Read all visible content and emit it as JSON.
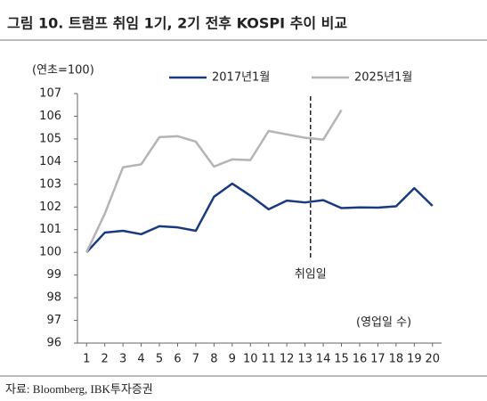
{
  "chart_data": {
    "type": "line",
    "title": "그림 10. 트럼프 취임 1기, 2기 전후 KOSPI 추이 비교",
    "y_label": "(연초=100)",
    "x_label": "(영업일 수)",
    "source": "자료: Bloomberg, IBK투자증권",
    "x": [
      1,
      2,
      3,
      4,
      5,
      6,
      7,
      8,
      9,
      10,
      11,
      12,
      13,
      14,
      15,
      16,
      17,
      18,
      19,
      20
    ],
    "series": [
      {
        "name": "2017년1월",
        "color": "#1a3a80",
        "values": [
          100,
          100.87,
          100.95,
          100.8,
          101.15,
          101.1,
          100.95,
          102.45,
          103.03,
          102.5,
          101.9,
          102.28,
          102.2,
          102.3,
          101.95,
          101.98,
          101.97,
          102.03,
          102.83,
          102.05
        ]
      },
      {
        "name": "2025년1월",
        "color": "#b4b4b4",
        "values": [
          100,
          101.7,
          103.75,
          103.88,
          105.08,
          105.12,
          104.88,
          103.78,
          104.1,
          104.07,
          105.35,
          105.2,
          105.05,
          104.97,
          106.27,
          null,
          null,
          null,
          null,
          null
        ]
      }
    ],
    "annotations": [
      {
        "text": "취임일",
        "x": 13.3
      }
    ],
    "xlim": [
      0.5,
      20.5
    ],
    "xticks": [
      1,
      2,
      3,
      4,
      5,
      6,
      7,
      8,
      9,
      10,
      11,
      12,
      13,
      14,
      15,
      16,
      17,
      18,
      19,
      20
    ],
    "ylim": [
      96,
      107
    ],
    "yticks": [
      96,
      97,
      98,
      99,
      100,
      101,
      102,
      103,
      104,
      105,
      106,
      107
    ],
    "grid": false,
    "legend": "top"
  }
}
